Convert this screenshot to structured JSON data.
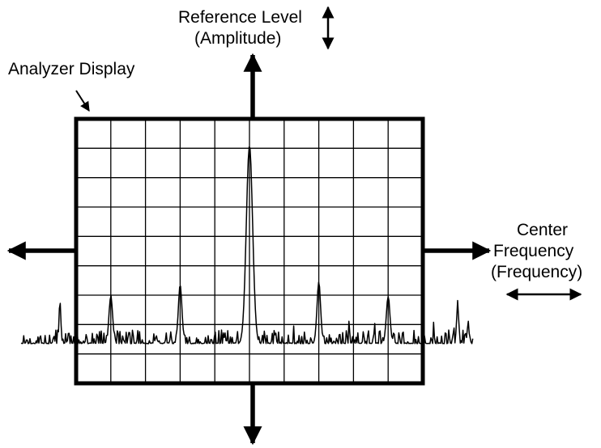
{
  "labels": {
    "reference_level": "Reference Level",
    "amplitude": "(Amplitude)",
    "analyzer_display": "Analyzer Display",
    "center": "Center",
    "frequency": "Frequency",
    "frequency_paren": "(Frequency)"
  },
  "display": {
    "grid_columns": 10,
    "grid_rows": 9
  },
  "signals": [
    {
      "position": 0.5,
      "amplitude": 0.9
    },
    {
      "position": 0.1,
      "amplitude": 0.33
    },
    {
      "position": 0.3,
      "amplitude": 0.37
    },
    {
      "position": 0.7,
      "amplitude": 0.38
    },
    {
      "position": 0.9,
      "amplitude": 0.33
    }
  ],
  "colors": {
    "ink": "#000000",
    "background": "#ffffff"
  }
}
